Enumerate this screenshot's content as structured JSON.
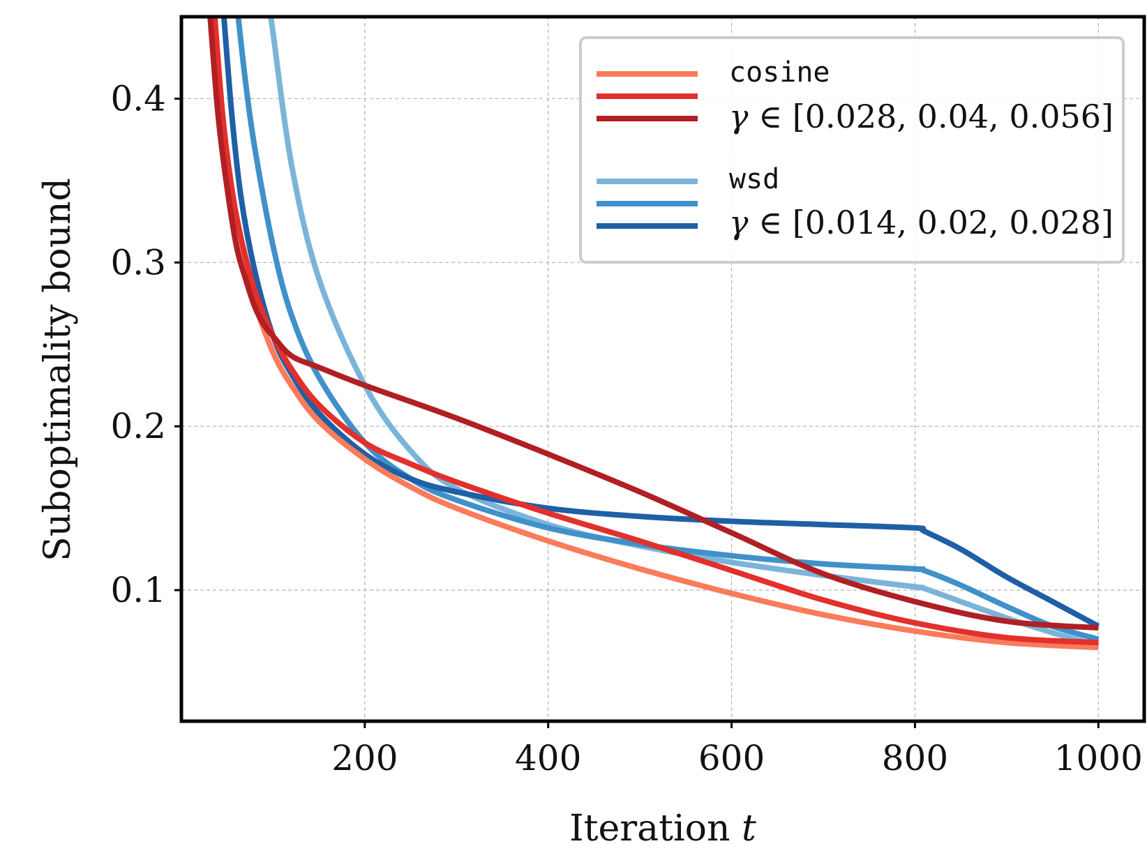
{
  "chart_data": {
    "type": "line",
    "xlabel": "Iteration",
    "xlabel_var": "t",
    "ylabel": "Suboptimality bound",
    "xlim": [
      0,
      1050
    ],
    "ylim": [
      0.02,
      0.45
    ],
    "xticks": [
      200,
      400,
      600,
      800,
      1000
    ],
    "xtick_labels": [
      "200",
      "400",
      "600",
      "800",
      "1000"
    ],
    "yticks": [
      0.1,
      0.2,
      0.3,
      0.4
    ],
    "ytick_labels": [
      "0.1",
      "0.2",
      "0.3",
      "0.4"
    ],
    "grid": true,
    "legend": {
      "placement": "top-right",
      "groups": [
        {
          "title": "cosine",
          "gamma_prefix": "γ ∈",
          "gamma_text": "[0.028, 0.04, 0.056]"
        },
        {
          "title": "wsd",
          "gamma_prefix": "γ ∈",
          "gamma_text": "[0.014, 0.02, 0.028]"
        }
      ]
    },
    "series": [
      {
        "name": "cosine γ=0.028",
        "group": "cosine",
        "color": "#fb7b5b",
        "x": [
          30,
          40,
          50,
          60,
          70,
          80,
          100,
          120,
          150,
          200,
          250,
          300,
          400,
          500,
          600,
          700,
          800,
          900,
          1000
        ],
        "y": [
          0.46,
          0.4,
          0.355,
          0.32,
          0.295,
          0.275,
          0.245,
          0.225,
          0.203,
          0.18,
          0.163,
          0.15,
          0.13,
          0.113,
          0.098,
          0.085,
          0.075,
          0.068,
          0.065
        ]
      },
      {
        "name": "cosine γ=0.04",
        "group": "cosine",
        "color": "#e2302c",
        "x": [
          35,
          45,
          55,
          65,
          80,
          100,
          120,
          150,
          200,
          250,
          300,
          400,
          500,
          600,
          700,
          800,
          900,
          1000
        ],
        "y": [
          0.46,
          0.39,
          0.345,
          0.315,
          0.283,
          0.255,
          0.235,
          0.213,
          0.19,
          0.177,
          0.166,
          0.147,
          0.13,
          0.112,
          0.094,
          0.08,
          0.071,
          0.068
        ]
      },
      {
        "name": "cosine γ=0.056",
        "group": "cosine",
        "color": "#b01f24",
        "x": [
          30,
          40,
          50,
          60,
          70,
          80,
          90,
          100,
          120,
          150,
          200,
          300,
          400,
          500,
          600,
          700,
          800,
          900,
          1000
        ],
        "y": [
          0.46,
          0.39,
          0.345,
          0.31,
          0.29,
          0.273,
          0.262,
          0.255,
          0.243,
          0.236,
          0.225,
          0.205,
          0.183,
          0.16,
          0.135,
          0.11,
          0.093,
          0.081,
          0.077
        ]
      },
      {
        "name": "wsd γ=0.014",
        "group": "wsd",
        "color": "#7bb4d9",
        "x": [
          95,
          100,
          120,
          150,
          200,
          250,
          300,
          400,
          500,
          600,
          700,
          800,
          810,
          850,
          900,
          950,
          1000
        ],
        "y": [
          0.46,
          0.44,
          0.36,
          0.29,
          0.225,
          0.185,
          0.162,
          0.14,
          0.127,
          0.117,
          0.109,
          0.102,
          0.101,
          0.093,
          0.083,
          0.074,
          0.066
        ]
      },
      {
        "name": "wsd γ=0.02",
        "group": "wsd",
        "color": "#4091c9",
        "x": [
          60,
          70,
          80,
          100,
          120,
          150,
          200,
          250,
          300,
          400,
          500,
          600,
          700,
          800,
          810,
          850,
          900,
          950,
          1000
        ],
        "y": [
          0.46,
          0.41,
          0.37,
          0.31,
          0.268,
          0.23,
          0.19,
          0.168,
          0.155,
          0.138,
          0.128,
          0.121,
          0.116,
          0.113,
          0.112,
          0.103,
          0.09,
          0.078,
          0.07
        ]
      },
      {
        "name": "wsd γ=0.028",
        "group": "wsd",
        "color": "#1f5fa6",
        "x": [
          45,
          55,
          65,
          80,
          100,
          120,
          150,
          200,
          250,
          300,
          400,
          500,
          600,
          700,
          800,
          810,
          850,
          900,
          950,
          1000
        ],
        "y": [
          0.46,
          0.39,
          0.34,
          0.295,
          0.255,
          0.232,
          0.208,
          0.183,
          0.168,
          0.16,
          0.15,
          0.145,
          0.142,
          0.14,
          0.138,
          0.136,
          0.125,
          0.108,
          0.093,
          0.078
        ]
      }
    ]
  }
}
